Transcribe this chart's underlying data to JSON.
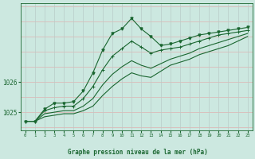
{
  "xlabel": "Graphe pression niveau de la mer (hPa)",
  "background_color": "#cce8e0",
  "grid_color_v": "#c8d8d4",
  "grid_color_h": "#f0c0c0",
  "line_color": "#1a6630",
  "x_hours": [
    0,
    1,
    2,
    3,
    4,
    5,
    6,
    7,
    8,
    9,
    10,
    11,
    12,
    13,
    14,
    15,
    16,
    17,
    18,
    19,
    20,
    21,
    22,
    23
  ],
  "series_jagged": [
    1024.7,
    1024.7,
    1025.1,
    1025.3,
    1025.3,
    1025.35,
    1025.7,
    1026.3,
    1027.05,
    1027.6,
    1027.75,
    1028.1,
    1027.75,
    1027.5,
    1027.2,
    1027.25,
    1027.35,
    1027.45,
    1027.55,
    1027.6,
    1027.65,
    1027.7,
    1027.75,
    1027.8
  ],
  "series1": [
    1024.7,
    1024.7,
    1025.05,
    1025.15,
    1025.2,
    1025.2,
    1025.45,
    1025.85,
    1026.4,
    1026.85,
    1027.1,
    1027.35,
    1027.15,
    1026.95,
    1027.05,
    1027.1,
    1027.15,
    1027.25,
    1027.35,
    1027.45,
    1027.55,
    1027.6,
    1027.65,
    1027.7
  ],
  "series2": [
    1024.7,
    1024.7,
    1024.95,
    1025.0,
    1025.05,
    1025.05,
    1025.2,
    1025.45,
    1025.9,
    1026.25,
    1026.5,
    1026.7,
    1026.55,
    1026.45,
    1026.6,
    1026.75,
    1026.85,
    1026.95,
    1027.1,
    1027.2,
    1027.3,
    1027.4,
    1027.5,
    1027.6
  ],
  "series3": [
    1024.7,
    1024.7,
    1024.85,
    1024.9,
    1024.95,
    1024.95,
    1025.05,
    1025.2,
    1025.55,
    1025.85,
    1026.1,
    1026.3,
    1026.2,
    1026.15,
    1026.35,
    1026.55,
    1026.65,
    1026.75,
    1026.9,
    1027.0,
    1027.1,
    1027.2,
    1027.35,
    1027.5
  ],
  "ylim_min": 1024.4,
  "ylim_max": 1028.6,
  "ytick_positions": [
    1025.0,
    1026.0
  ],
  "ytick_labels": [
    "1025",
    "1026"
  ],
  "xticks": [
    0,
    1,
    2,
    3,
    4,
    5,
    6,
    7,
    8,
    9,
    10,
    11,
    12,
    13,
    14,
    15,
    16,
    17,
    18,
    19,
    20,
    21,
    22,
    23
  ]
}
